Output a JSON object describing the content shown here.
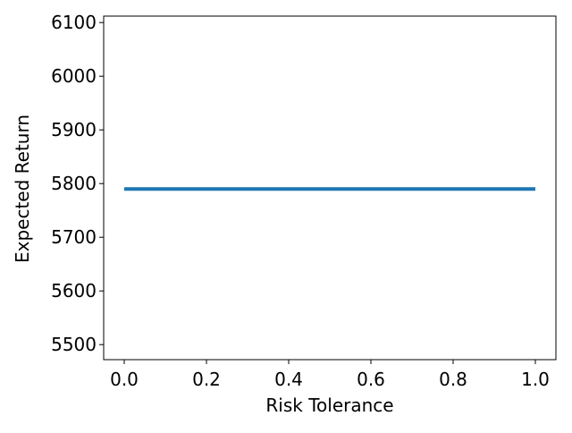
{
  "chart_data": {
    "type": "line",
    "title": "",
    "xlabel": "Risk Tolerance",
    "ylabel": "Expected Return",
    "xlim": [
      -0.05,
      1.05
    ],
    "ylim": [
      5472,
      6112
    ],
    "x_ticks": [
      0.0,
      0.2,
      0.4,
      0.6,
      0.8,
      1.0
    ],
    "x_tick_labels": [
      "0.0",
      "0.2",
      "0.4",
      "0.6",
      "0.8",
      "1.0"
    ],
    "y_ticks": [
      5500,
      5600,
      5700,
      5800,
      5900,
      6000,
      6100
    ],
    "y_tick_labels": [
      "5500",
      "5600",
      "5700",
      "5800",
      "5900",
      "6000",
      "6100"
    ],
    "grid": false,
    "series": [
      {
        "x": [
          0.0,
          1.0
        ],
        "y": [
          5790,
          5790
        ],
        "color": "#1f77b4"
      }
    ]
  }
}
